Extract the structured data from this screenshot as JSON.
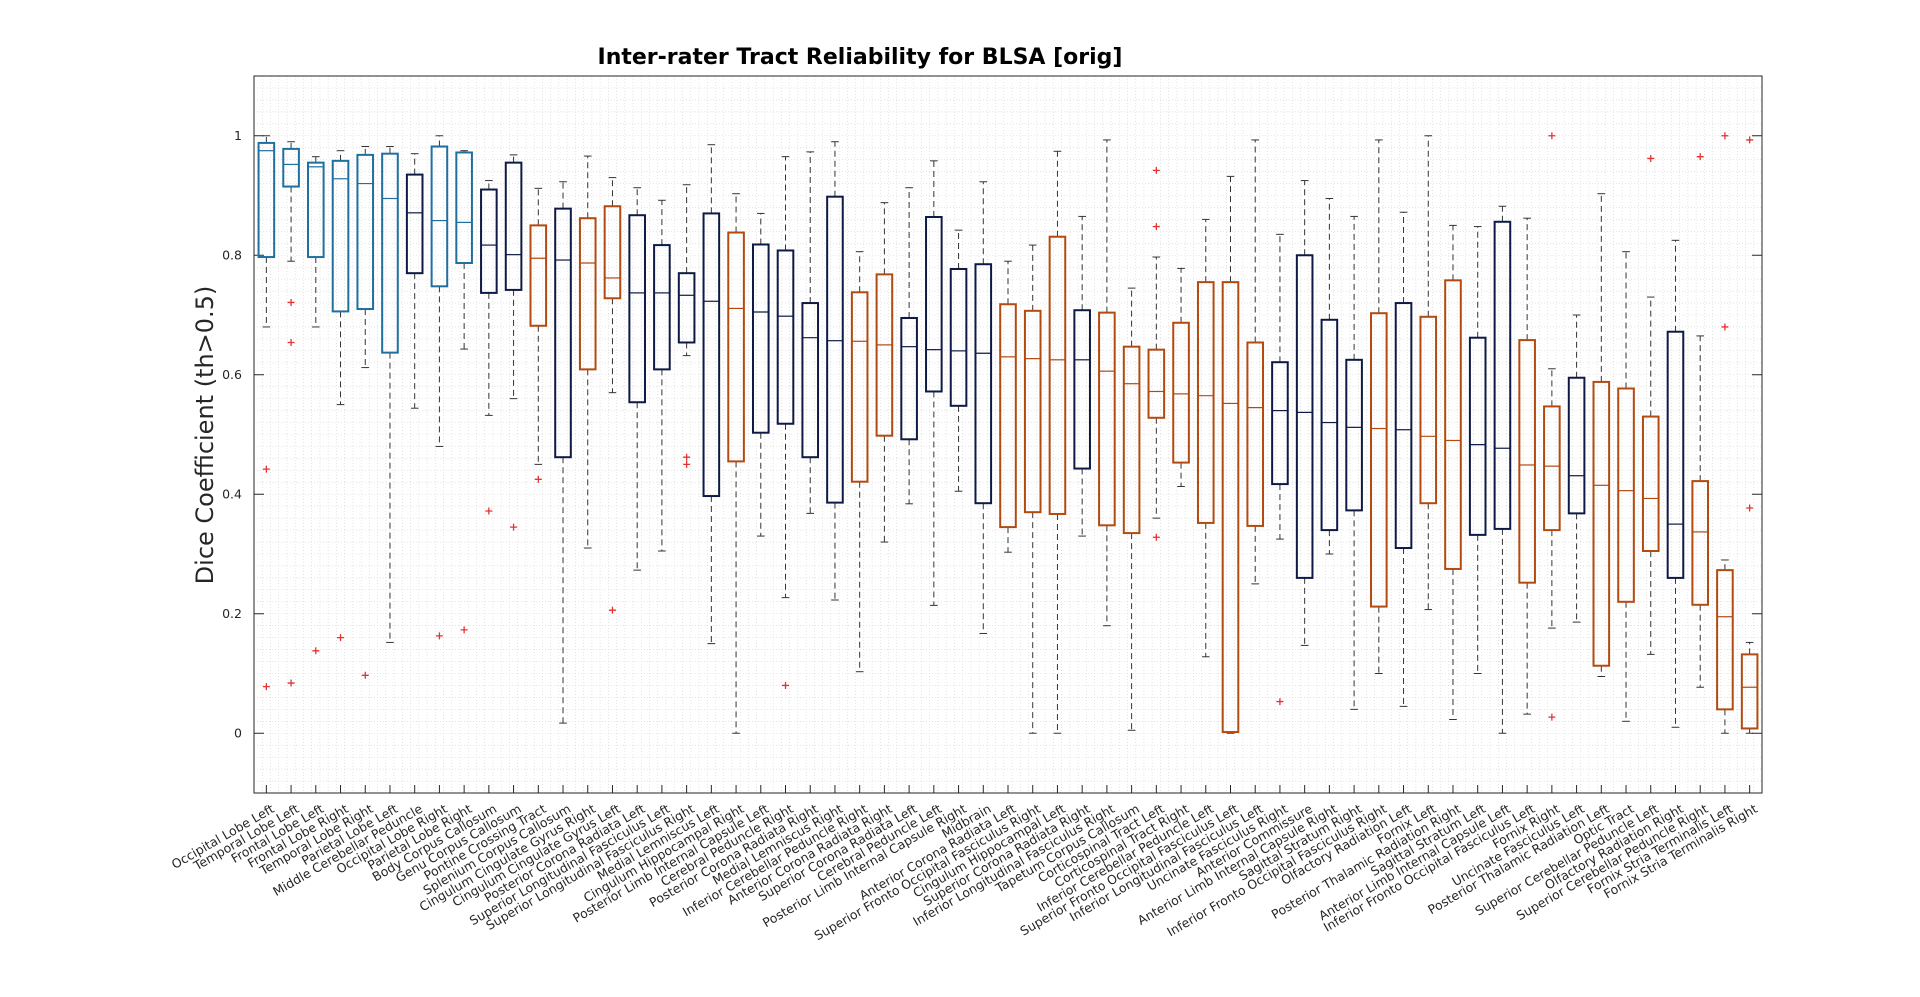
{
  "chart_data": {
    "type": "boxplot",
    "title": "Inter-rater Tract Reliability for BLSA [orig]",
    "xlabel": "",
    "ylabel": "Dice Coefficient (th>0.5)",
    "ylim": [
      -0.1,
      1.1
    ],
    "yticks": [
      0,
      0.2,
      0.4,
      0.6,
      0.8,
      1
    ],
    "grid": "minor",
    "legend": "none",
    "colors": {
      "lobe": "#1f6f9f",
      "commissural": "#0e1a45",
      "lateral": "#b34a0f",
      "outlier": "#e63232",
      "whisker": "#333333",
      "grid": "#d4d4d4"
    },
    "boxes": [
      {
        "name": "Occipital Lobe Left",
        "group": "lobe",
        "q1": 0.797,
        "median": 0.975,
        "q3": 0.988,
        "lower": 0.68,
        "upper": 1.0,
        "outliers": [
          0.442,
          0.078
        ]
      },
      {
        "name": "Temporal Lobe Left",
        "group": "lobe",
        "q1": 0.915,
        "median": 0.952,
        "q3": 0.978,
        "lower": 0.79,
        "upper": 0.99,
        "outliers": [
          0.721,
          0.654,
          0.084
        ]
      },
      {
        "name": "Frontal Lobe Left",
        "group": "lobe",
        "q1": 0.797,
        "median": 0.948,
        "q3": 0.955,
        "lower": 0.68,
        "upper": 0.965,
        "outliers": [
          0.138
        ]
      },
      {
        "name": "Frontal Lobe Right",
        "group": "lobe",
        "q1": 0.706,
        "median": 0.928,
        "q3": 0.958,
        "lower": 0.55,
        "upper": 0.975,
        "outliers": [
          0.16
        ]
      },
      {
        "name": "Temporal Lobe Right",
        "group": "lobe",
        "q1": 0.71,
        "median": 0.92,
        "q3": 0.968,
        "lower": 0.612,
        "upper": 0.982,
        "outliers": [
          0.097
        ]
      },
      {
        "name": "Parietal Lobe Left",
        "group": "lobe",
        "q1": 0.637,
        "median": 0.895,
        "q3": 0.97,
        "lower": 0.152,
        "upper": 0.982,
        "outliers": []
      },
      {
        "name": "Middle Cerebellar Peduncle",
        "group": "commissural",
        "q1": 0.77,
        "median": 0.871,
        "q3": 0.935,
        "lower": 0.544,
        "upper": 0.97,
        "outliers": []
      },
      {
        "name": "Occipital Lobe Right",
        "group": "lobe",
        "q1": 0.748,
        "median": 0.858,
        "q3": 0.982,
        "lower": 0.48,
        "upper": 1.0,
        "outliers": [
          0.163
        ]
      },
      {
        "name": "Parietal Lobe Right",
        "group": "lobe",
        "q1": 0.787,
        "median": 0.855,
        "q3": 0.972,
        "lower": 0.643,
        "upper": 0.975,
        "outliers": [
          0.173
        ]
      },
      {
        "name": "Body Corpus Callosum",
        "group": "commissural",
        "q1": 0.737,
        "median": 0.817,
        "q3": 0.91,
        "lower": 0.532,
        "upper": 0.925,
        "outliers": [
          0.372
        ]
      },
      {
        "name": "Genu Corpus Callosum",
        "group": "commissural",
        "q1": 0.742,
        "median": 0.801,
        "q3": 0.955,
        "lower": 0.56,
        "upper": 0.968,
        "outliers": [
          0.345
        ]
      },
      {
        "name": "Pontine Crossing Tract",
        "group": "lateral",
        "q1": 0.682,
        "median": 0.795,
        "q3": 0.85,
        "lower": 0.45,
        "upper": 0.912,
        "outliers": [
          0.425
        ]
      },
      {
        "name": "Splenium Corpus Callosum",
        "group": "commissural",
        "q1": 0.462,
        "median": 0.792,
        "q3": 0.878,
        "lower": 0.017,
        "upper": 0.923,
        "outliers": []
      },
      {
        "name": "Cingulum Cingulate Gyrus Right",
        "group": "lateral",
        "q1": 0.609,
        "median": 0.787,
        "q3": 0.862,
        "lower": 0.31,
        "upper": 0.966,
        "outliers": []
      },
      {
        "name": "Cingulum Cingulate Gyrus Left",
        "group": "lateral",
        "q1": 0.728,
        "median": 0.762,
        "q3": 0.882,
        "lower": 0.57,
        "upper": 0.93,
        "outliers": [
          0.206
        ]
      },
      {
        "name": "Posterior Corona Radiata Left",
        "group": "commissural",
        "q1": 0.554,
        "median": 0.737,
        "q3": 0.867,
        "lower": 0.273,
        "upper": 0.913,
        "outliers": []
      },
      {
        "name": "Superior Longitudinal Fasciculus Left",
        "group": "commissural",
        "q1": 0.609,
        "median": 0.737,
        "q3": 0.817,
        "lower": 0.305,
        "upper": 0.892,
        "outliers": []
      },
      {
        "name": "Superior Longitudinal Fasciculus Right",
        "group": "commissural",
        "q1": 0.654,
        "median": 0.733,
        "q3": 0.77,
        "lower": 0.632,
        "upper": 0.918,
        "outliers": [
          0.462,
          0.45
        ]
      },
      {
        "name": "Medial Lemniscus Left",
        "group": "commissural",
        "q1": 0.397,
        "median": 0.723,
        "q3": 0.87,
        "lower": 0.15,
        "upper": 0.985,
        "outliers": []
      },
      {
        "name": "Cingulum Hippocampal Right",
        "group": "lateral",
        "q1": 0.455,
        "median": 0.711,
        "q3": 0.838,
        "lower": 0.0,
        "upper": 0.903,
        "outliers": []
      },
      {
        "name": "Posterior Limb Internal Capsule Left",
        "group": "commissural",
        "q1": 0.503,
        "median": 0.705,
        "q3": 0.818,
        "lower": 0.33,
        "upper": 0.87,
        "outliers": []
      },
      {
        "name": "Cerebral Peduncle Right",
        "group": "commissural",
        "q1": 0.518,
        "median": 0.698,
        "q3": 0.808,
        "lower": 0.227,
        "upper": 0.965,
        "outliers": [
          0.08
        ]
      },
      {
        "name": "Posterior Corona Radiata Right",
        "group": "commissural",
        "q1": 0.462,
        "median": 0.662,
        "q3": 0.72,
        "lower": 0.368,
        "upper": 0.973,
        "outliers": []
      },
      {
        "name": "Medial Lemniscus Right",
        "group": "commissural",
        "q1": 0.386,
        "median": 0.657,
        "q3": 0.898,
        "lower": 0.223,
        "upper": 0.99,
        "outliers": []
      },
      {
        "name": "Inferior Cerebellar Peduncle Right",
        "group": "lateral",
        "q1": 0.421,
        "median": 0.656,
        "q3": 0.738,
        "lower": 0.103,
        "upper": 0.806,
        "outliers": []
      },
      {
        "name": "Anterior Corona Radiata Right",
        "group": "lateral",
        "q1": 0.498,
        "median": 0.65,
        "q3": 0.768,
        "lower": 0.32,
        "upper": 0.888,
        "outliers": []
      },
      {
        "name": "Superior Corona Radiata Left",
        "group": "commissural",
        "q1": 0.492,
        "median": 0.647,
        "q3": 0.695,
        "lower": 0.384,
        "upper": 0.913,
        "outliers": []
      },
      {
        "name": "Cerebral Peduncle Left",
        "group": "commissural",
        "q1": 0.572,
        "median": 0.642,
        "q3": 0.864,
        "lower": 0.214,
        "upper": 0.958,
        "outliers": []
      },
      {
        "name": "Posterior Limb Internal Capsule Right",
        "group": "commissural",
        "q1": 0.548,
        "median": 0.64,
        "q3": 0.777,
        "lower": 0.405,
        "upper": 0.842,
        "outliers": []
      },
      {
        "name": "Midbrain",
        "group": "commissural",
        "q1": 0.385,
        "median": 0.636,
        "q3": 0.785,
        "lower": 0.167,
        "upper": 0.923,
        "outliers": []
      },
      {
        "name": "Anterior Corona Radiata Left",
        "group": "lateral",
        "q1": 0.345,
        "median": 0.63,
        "q3": 0.718,
        "lower": 0.303,
        "upper": 0.79,
        "outliers": []
      },
      {
        "name": "Superior Fronto Occipital Fasciculus Right",
        "group": "lateral",
        "q1": 0.37,
        "median": 0.627,
        "q3": 0.707,
        "lower": 0.0,
        "upper": 0.817,
        "outliers": []
      },
      {
        "name": "Cingulum Hippocampal Left",
        "group": "lateral",
        "q1": 0.367,
        "median": 0.625,
        "q3": 0.831,
        "lower": 0.0,
        "upper": 0.974,
        "outliers": []
      },
      {
        "name": "Superior Corona Radiata Right",
        "group": "commissural",
        "q1": 0.443,
        "median": 0.625,
        "q3": 0.708,
        "lower": 0.33,
        "upper": 0.865,
        "outliers": []
      },
      {
        "name": "Inferior Longitudinal Fasciculus Right",
        "group": "lateral",
        "q1": 0.348,
        "median": 0.606,
        "q3": 0.704,
        "lower": 0.18,
        "upper": 0.993,
        "outliers": []
      },
      {
        "name": "Tapetum Corpus Callosum",
        "group": "lateral",
        "q1": 0.335,
        "median": 0.585,
        "q3": 0.647,
        "lower": 0.005,
        "upper": 0.745,
        "outliers": []
      },
      {
        "name": "Corticospinal Tract Left",
        "group": "lateral",
        "q1": 0.528,
        "median": 0.572,
        "q3": 0.642,
        "lower": 0.36,
        "upper": 0.797,
        "outliers": [
          0.942,
          0.848,
          0.328
        ]
      },
      {
        "name": "Corticospinal Tract Right",
        "group": "lateral",
        "q1": 0.453,
        "median": 0.568,
        "q3": 0.687,
        "lower": 0.413,
        "upper": 0.778,
        "outliers": []
      },
      {
        "name": "Inferior Cerebellar Peduncle Left",
        "group": "lateral",
        "q1": 0.352,
        "median": 0.565,
        "q3": 0.755,
        "lower": 0.128,
        "upper": 0.86,
        "outliers": []
      },
      {
        "name": "Superior Fronto Occipital Fasciculus Left",
        "group": "lateral",
        "q1": 0.002,
        "median": 0.552,
        "q3": 0.755,
        "lower": 0.0,
        "upper": 0.932,
        "outliers": []
      },
      {
        "name": "Inferior Longitudinal Fasciculus Left",
        "group": "lateral",
        "q1": 0.347,
        "median": 0.545,
        "q3": 0.654,
        "lower": 0.25,
        "upper": 0.993,
        "outliers": []
      },
      {
        "name": "Uncinate Fasciculus Right",
        "group": "commissural",
        "q1": 0.417,
        "median": 0.54,
        "q3": 0.621,
        "lower": 0.325,
        "upper": 0.835,
        "outliers": [
          0.053
        ]
      },
      {
        "name": "Anterior Commissure",
        "group": "commissural",
        "q1": 0.26,
        "median": 0.537,
        "q3": 0.8,
        "lower": 0.147,
        "upper": 0.925,
        "outliers": []
      },
      {
        "name": "Anterior Limb Internal Capsule Right",
        "group": "commissural",
        "q1": 0.34,
        "median": 0.52,
        "q3": 0.692,
        "lower": 0.3,
        "upper": 0.895,
        "outliers": []
      },
      {
        "name": "Sagittal Stratum Right",
        "group": "commissural",
        "q1": 0.373,
        "median": 0.512,
        "q3": 0.625,
        "lower": 0.04,
        "upper": 0.865,
        "outliers": []
      },
      {
        "name": "Inferior Fronto Occipital Fasciculus Right",
        "group": "lateral",
        "q1": 0.212,
        "median": 0.51,
        "q3": 0.703,
        "lower": 0.1,
        "upper": 0.993,
        "outliers": []
      },
      {
        "name": "Olfactory Radiation Left",
        "group": "commissural",
        "q1": 0.31,
        "median": 0.508,
        "q3": 0.72,
        "lower": 0.045,
        "upper": 0.872,
        "outliers": []
      },
      {
        "name": "Fornix Left",
        "group": "lateral",
        "q1": 0.385,
        "median": 0.497,
        "q3": 0.697,
        "lower": 0.207,
        "upper": 1.0,
        "outliers": []
      },
      {
        "name": "Posterior Thalamic Radiation Right",
        "group": "lateral",
        "q1": 0.275,
        "median": 0.49,
        "q3": 0.758,
        "lower": 0.023,
        "upper": 0.85,
        "outliers": []
      },
      {
        "name": "Sagittal Stratum Left",
        "group": "commissural",
        "q1": 0.332,
        "median": 0.483,
        "q3": 0.662,
        "lower": 0.1,
        "upper": 0.848,
        "outliers": []
      },
      {
        "name": "Anterior Limb Internal Capsule Left",
        "group": "commissural",
        "q1": 0.342,
        "median": 0.477,
        "q3": 0.856,
        "lower": 0.0,
        "upper": 0.882,
        "outliers": []
      },
      {
        "name": "Inferior Fronto Occipital Fasciculus Left",
        "group": "lateral",
        "q1": 0.252,
        "median": 0.449,
        "q3": 0.658,
        "lower": 0.032,
        "upper": 0.862,
        "outliers": []
      },
      {
        "name": "Fornix Right",
        "group": "lateral",
        "q1": 0.34,
        "median": 0.447,
        "q3": 0.547,
        "lower": 0.176,
        "upper": 0.61,
        "outliers": [
          1.0,
          0.027
        ]
      },
      {
        "name": "Uncinate Fasciculus Left",
        "group": "commissural",
        "q1": 0.368,
        "median": 0.431,
        "q3": 0.595,
        "lower": 0.186,
        "upper": 0.7,
        "outliers": []
      },
      {
        "name": "Posterior Thalamic Radiation Left",
        "group": "lateral",
        "q1": 0.113,
        "median": 0.415,
        "q3": 0.588,
        "lower": 0.095,
        "upper": 0.903,
        "outliers": []
      },
      {
        "name": "Optic Tract",
        "group": "lateral",
        "q1": 0.22,
        "median": 0.406,
        "q3": 0.577,
        "lower": 0.02,
        "upper": 0.806,
        "outliers": []
      },
      {
        "name": "Superior Cerebellar Peduncle Left",
        "group": "lateral",
        "q1": 0.305,
        "median": 0.393,
        "q3": 0.53,
        "lower": 0.132,
        "upper": 0.73,
        "outliers": [
          0.962
        ]
      },
      {
        "name": "Olfactory Radiation Right",
        "group": "commissural",
        "q1": 0.26,
        "median": 0.35,
        "q3": 0.672,
        "lower": 0.01,
        "upper": 0.825,
        "outliers": []
      },
      {
        "name": "Superior Cerebellar Peduncle Right",
        "group": "lateral",
        "q1": 0.215,
        "median": 0.337,
        "q3": 0.422,
        "lower": 0.077,
        "upper": 0.665,
        "outliers": [
          0.965
        ]
      },
      {
        "name": "Fornix Stria Terminalis Left",
        "group": "lateral",
        "q1": 0.04,
        "median": 0.195,
        "q3": 0.273,
        "lower": 0.0,
        "upper": 0.29,
        "outliers": [
          1.0,
          0.68
        ]
      },
      {
        "name": "Fornix Stria Terminalis Right",
        "group": "lateral",
        "q1": 0.008,
        "median": 0.077,
        "q3": 0.132,
        "lower": 0.0,
        "upper": 0.152,
        "outliers": [
          0.993,
          0.377
        ]
      }
    ]
  }
}
